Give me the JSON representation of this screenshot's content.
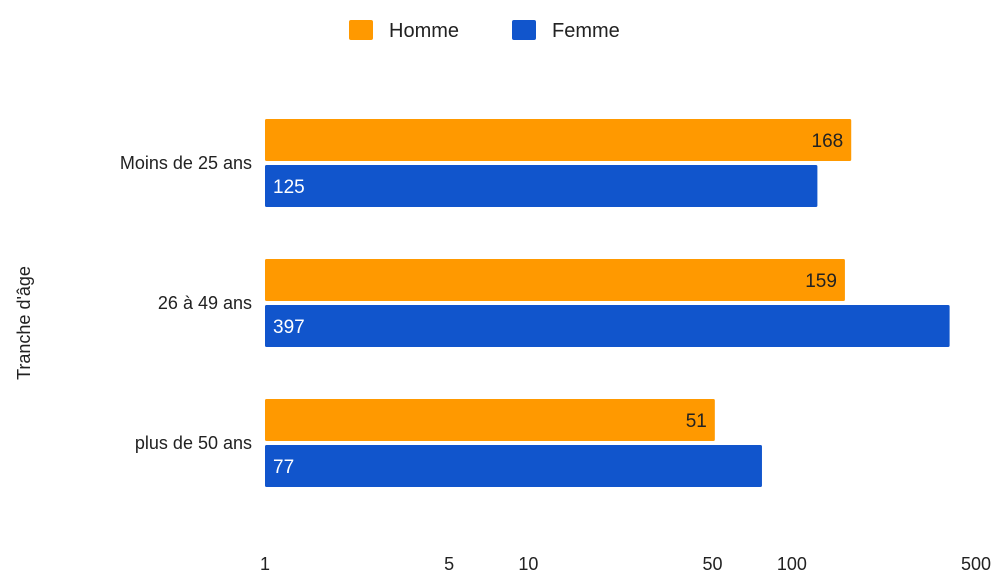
{
  "chart_data": {
    "type": "bar",
    "orientation": "horizontal",
    "categories": [
      "Moins de 25 ans",
      "26 à 49 ans",
      "plus de 50 ans"
    ],
    "series": [
      {
        "name": "Homme",
        "color": "#ff9900",
        "values": [
          168,
          159,
          51
        ]
      },
      {
        "name": "Femme",
        "color": "#1155cc",
        "values": [
          125,
          397,
          77
        ]
      }
    ],
    "ylabel": "Tranche d'âge",
    "xlabel": "",
    "xscale": "log",
    "xlim": [
      1,
      500
    ],
    "xticks": [
      1,
      5,
      10,
      50,
      100,
      500
    ],
    "legend_position": "top",
    "grid": false,
    "data_labels": true
  }
}
